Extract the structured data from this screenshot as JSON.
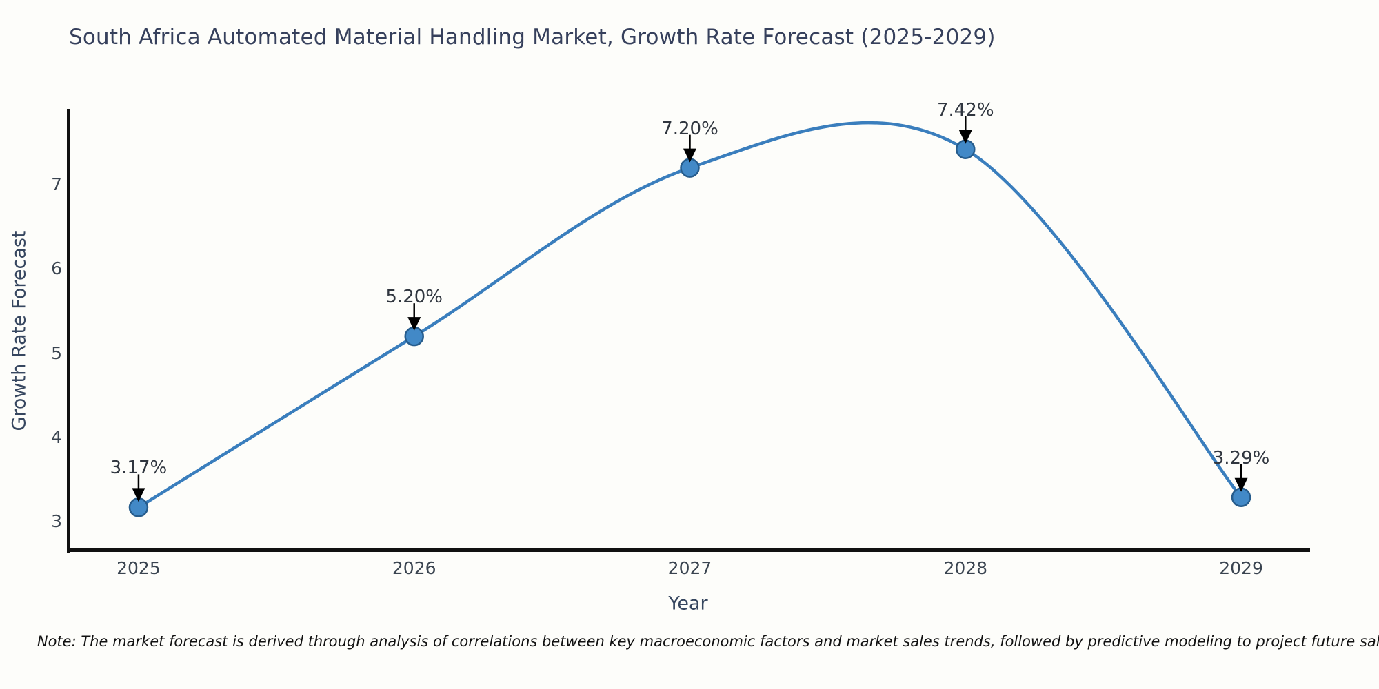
{
  "title": "South Africa Automated Material Handling Market, Growth Rate Forecast (2025-2029)",
  "note": "Note: The market forecast is derived through analysis of correlations between key macroeconomic factors and market sales trends, followed by predictive modeling to project future sales.",
  "chart_data": {
    "type": "line",
    "title": "South Africa Automated Material Handling Market, Growth Rate Forecast (2025-2029)",
    "x": [
      2025,
      2026,
      2027,
      2028,
      2029
    ],
    "values": [
      3.17,
      5.2,
      7.2,
      7.42,
      3.29
    ],
    "annotations": [
      "3.17%",
      "5.20%",
      "7.20%",
      "7.42%",
      "3.29%"
    ],
    "xlabel": "Year",
    "ylabel": "Growth Rate Forecast",
    "x_ticks": [
      "2025",
      "2026",
      "2027",
      "2028",
      "2029"
    ],
    "y_ticks": [
      3,
      4,
      5,
      6,
      7
    ],
    "xlim": [
      2024.74,
      2029.25
    ],
    "ylim": [
      2.65,
      7.9
    ],
    "grid": false,
    "curve": "spline",
    "legend": "none",
    "colors": {
      "line": "#3a7ebd",
      "marker_fill": "#4289c7",
      "marker_edge": "#265c8c",
      "arrow": "#000000",
      "spine": "#111111",
      "title_text": "#36405c",
      "axis_label_text": "#36465f",
      "tick_text": "#3a4450",
      "annotation_text": "#30363f",
      "background": "#fdfdfa"
    }
  }
}
